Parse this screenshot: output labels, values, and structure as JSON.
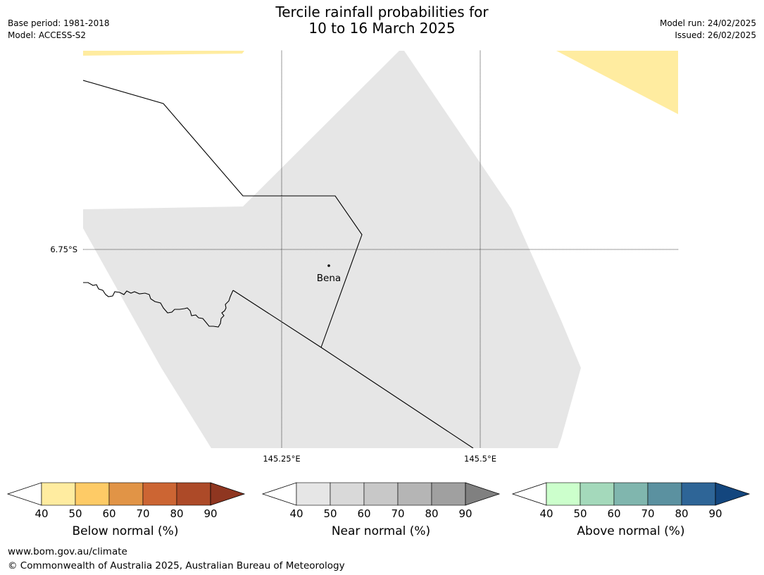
{
  "header": {
    "title_line1": "Tercile rainfall probabilities for",
    "title_line2": "10 to 16 March 2025",
    "left_line1": "Base period: 1981-2018",
    "left_line2": "Model: ACCESS-S2",
    "right_line1": "Model run: 24/02/2025",
    "right_line2": "Issued: 26/02/2025"
  },
  "map": {
    "lat_labels": [
      "6.75°S"
    ],
    "lon_labels": [
      "145.25°E",
      "145.5°E"
    ],
    "place_label": "Bena",
    "colors": {
      "near_normal_40_50": "#e6e6e6",
      "below_normal_40_50": "#ffeca0"
    }
  },
  "colorbars": [
    {
      "title": "Below normal (%)",
      "ticks": [
        "40",
        "50",
        "60",
        "70",
        "80",
        "90"
      ],
      "colors": [
        "#ffeca0",
        "#fecb66",
        "#e19446",
        "#cc6533",
        "#ad4a28",
        "#8f3620"
      ]
    },
    {
      "title": "Near normal (%)",
      "ticks": [
        "40",
        "50",
        "60",
        "70",
        "80",
        "90"
      ],
      "colors": [
        "#e6e6e6",
        "#d9d9d9",
        "#c8c8c8",
        "#b5b5b5",
        "#a0a0a0",
        "#808080"
      ]
    },
    {
      "title": "Above normal (%)",
      "ticks": [
        "40",
        "50",
        "60",
        "70",
        "80",
        "90"
      ],
      "colors": [
        "#ccffcc",
        "#a4d9bb",
        "#80b6ae",
        "#5b91a0",
        "#2e6597",
        "#13467e"
      ]
    }
  ],
  "footer": {
    "line1": "www.bom.gov.au/climate",
    "line2": "© Commonwealth of Australia 2025, Australian Bureau of Meteorology"
  }
}
